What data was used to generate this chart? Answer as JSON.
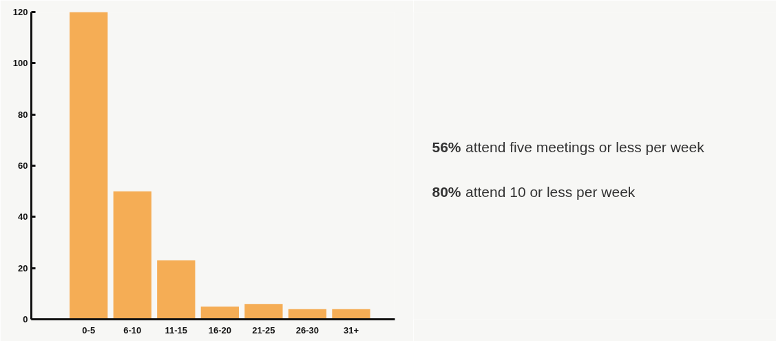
{
  "chart_data": {
    "type": "bar",
    "categories": [
      "0-5",
      "6-10",
      "11-15",
      "16-20",
      "21-25",
      "26-30",
      "31+"
    ],
    "values": [
      120,
      50,
      23,
      5,
      6,
      4,
      4
    ],
    "color": "#f5ad55",
    "ylim": [
      0,
      120
    ],
    "yticks": [
      0,
      20,
      40,
      60,
      80,
      100,
      120
    ],
    "grid": false,
    "annotations": [
      "56% attend five meetings or less per week",
      "80% attend 10 or less per week"
    ]
  }
}
